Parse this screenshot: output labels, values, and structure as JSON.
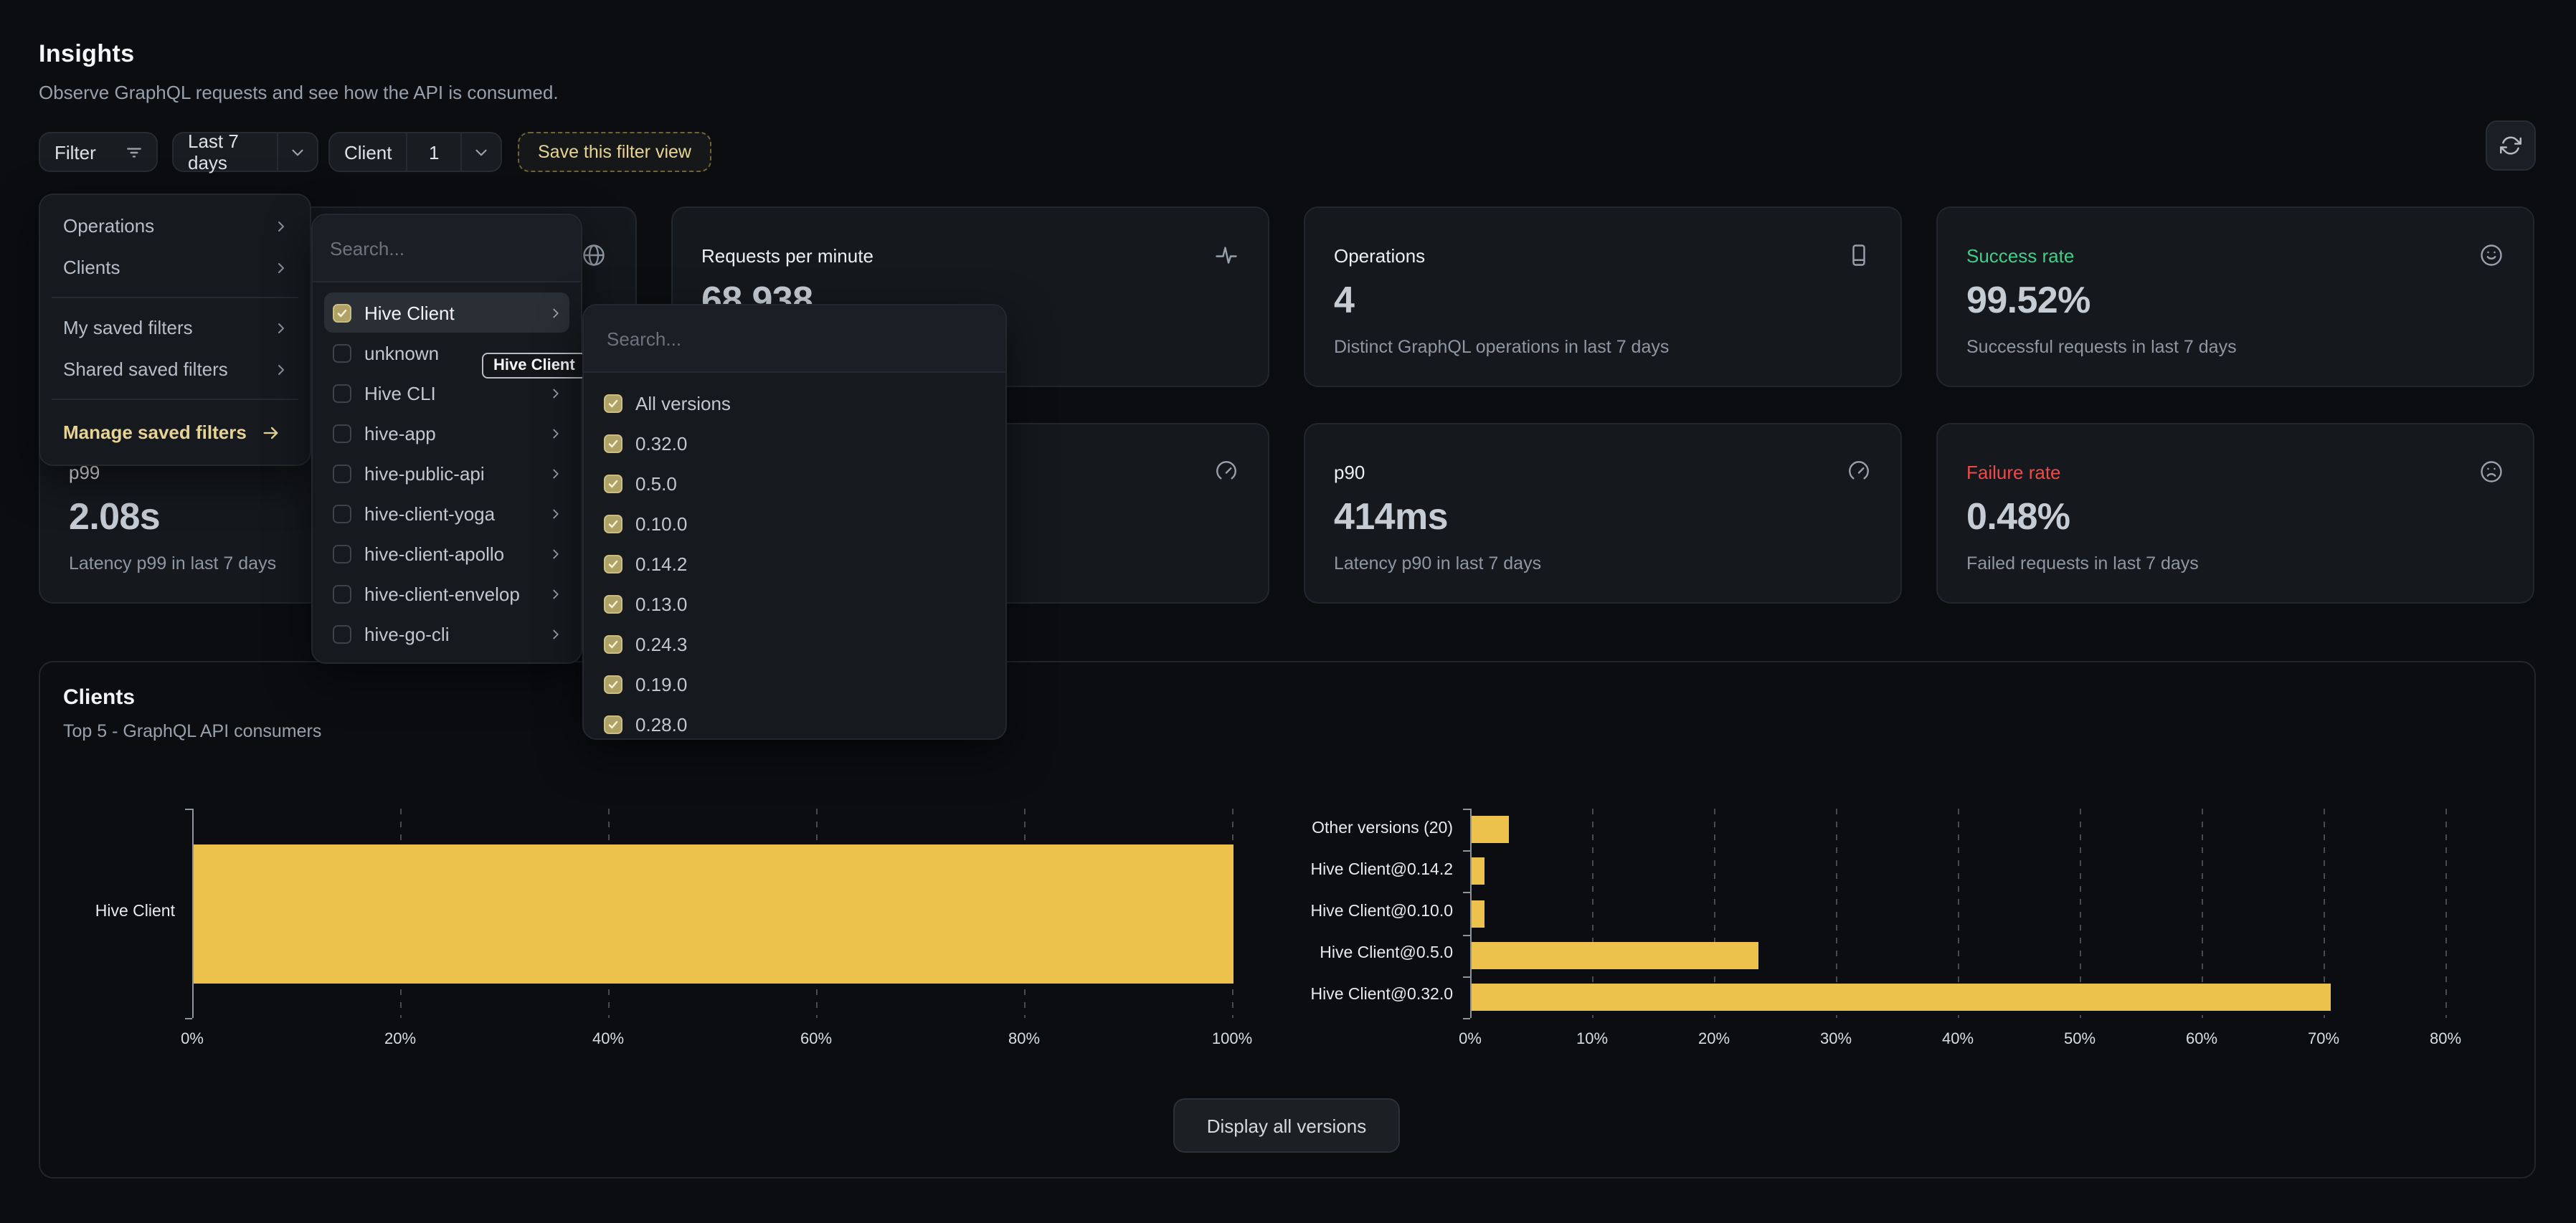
{
  "header": {
    "title": "Insights",
    "subtitle": "Observe GraphQL requests and see how the API is consumed."
  },
  "filter_bar": {
    "filter_label": "Filter",
    "date_range_label": "Last 7 days",
    "client_filter_label": "Client",
    "client_filter_count": "1",
    "save_view_label": "Save this filter view"
  },
  "filter_menu": {
    "items": [
      {
        "label": "Operations"
      },
      {
        "label": "Clients"
      },
      {
        "label": "My saved filters"
      },
      {
        "label": "Shared saved filters"
      }
    ],
    "manage_label": "Manage saved filters"
  },
  "client_menu": {
    "search_placeholder": "Search...",
    "tooltip": "Hive Client",
    "items": [
      {
        "label": "Hive Client",
        "checked": true,
        "submenu": true,
        "highlighted": true
      },
      {
        "label": "unknown",
        "checked": false,
        "submenu": false
      },
      {
        "label": "Hive CLI",
        "checked": false,
        "submenu": true
      },
      {
        "label": "hive-app",
        "checked": false,
        "submenu": true
      },
      {
        "label": "hive-public-api",
        "checked": false,
        "submenu": true
      },
      {
        "label": "hive-client-yoga",
        "checked": false,
        "submenu": true
      },
      {
        "label": "hive-client-apollo",
        "checked": false,
        "submenu": true
      },
      {
        "label": "hive-client-envelop",
        "checked": false,
        "submenu": true
      },
      {
        "label": "hive-go-cli",
        "checked": false,
        "submenu": true
      }
    ]
  },
  "version_menu": {
    "search_placeholder": "Search...",
    "items": [
      {
        "label": "All versions",
        "checked": true
      },
      {
        "label": "0.32.0",
        "checked": true
      },
      {
        "label": "0.5.0",
        "checked": true
      },
      {
        "label": "0.10.0",
        "checked": true
      },
      {
        "label": "0.14.2",
        "checked": true
      },
      {
        "label": "0.13.0",
        "checked": true
      },
      {
        "label": "0.24.3",
        "checked": true
      },
      {
        "label": "0.19.0",
        "checked": true
      },
      {
        "label": "0.28.0",
        "checked": true
      }
    ]
  },
  "stats": {
    "requests": {
      "title": "Requests per minute",
      "value": "68,938"
    },
    "operations": {
      "title": "Operations",
      "value": "4",
      "description": "Distinct GraphQL operations in last 7 days"
    },
    "success": {
      "title": "Success rate",
      "value": "99.52%",
      "description": "Successful requests in last 7 days"
    },
    "p99": {
      "title": "p99",
      "value": "2.08s",
      "description": "Latency p99 in last 7 days"
    },
    "p90": {
      "title": "p90",
      "value": "414ms",
      "description": "Latency p90 in last 7 days"
    },
    "failure": {
      "title": "Failure rate",
      "value": "0.48%",
      "description": "Failed requests in last 7 days"
    }
  },
  "clients_section": {
    "title": "Clients",
    "subtitle": "Top 5 - GraphQL API consumers",
    "display_all_label": "Display all versions"
  },
  "chart_data": [
    {
      "type": "bar",
      "orientation": "horizontal",
      "categories": [
        "Hive Client"
      ],
      "values": [
        100
      ],
      "xlim": [
        0,
        100
      ],
      "xticks": [
        0,
        20,
        40,
        60,
        80,
        100
      ],
      "unit": "%",
      "bar_color": "#ecc24d",
      "grid": "dashed-vertical"
    },
    {
      "type": "bar",
      "orientation": "horizontal",
      "categories": [
        "Other versions (20)",
        "Hive Client@0.14.2",
        "Hive Client@0.10.0",
        "Hive Client@0.5.0",
        "Hive Client@0.32.0"
      ],
      "values": [
        3,
        1,
        1,
        23.5,
        70.5
      ],
      "xlim": [
        0,
        80
      ],
      "xticks": [
        0,
        10,
        20,
        30,
        40,
        50,
        60,
        70,
        80
      ],
      "unit": "%",
      "bar_color": "#ecc24d",
      "grid": "dashed-vertical"
    }
  ],
  "icons": {
    "filter_button": "filter-lines-icon",
    "dropdown_buttons": "chevron-down-icon",
    "refresh_button": "refresh-icon",
    "clients_overview_card": "globe-icon",
    "requests_card": "activity-pulse-icon",
    "operations_card": "device-icon",
    "success_card": "smiley-face-icon",
    "covered_card": "gauge-icon",
    "p90_card": "gauge-icon",
    "failure_card": "sad-face-icon",
    "submenu_rows": "chevron-right-icon",
    "manage_filters_row": "arrow-right-icon",
    "checkboxes": "check-icon"
  },
  "colors": {
    "accent_yellow": "#e7d494",
    "bar_yellow": "#ecc24d",
    "success_green": "#41cf87",
    "failure_red": "#ee4a4a",
    "background": "#0b0d11",
    "card_background": "#15181d",
    "card_border": "#23272d"
  }
}
